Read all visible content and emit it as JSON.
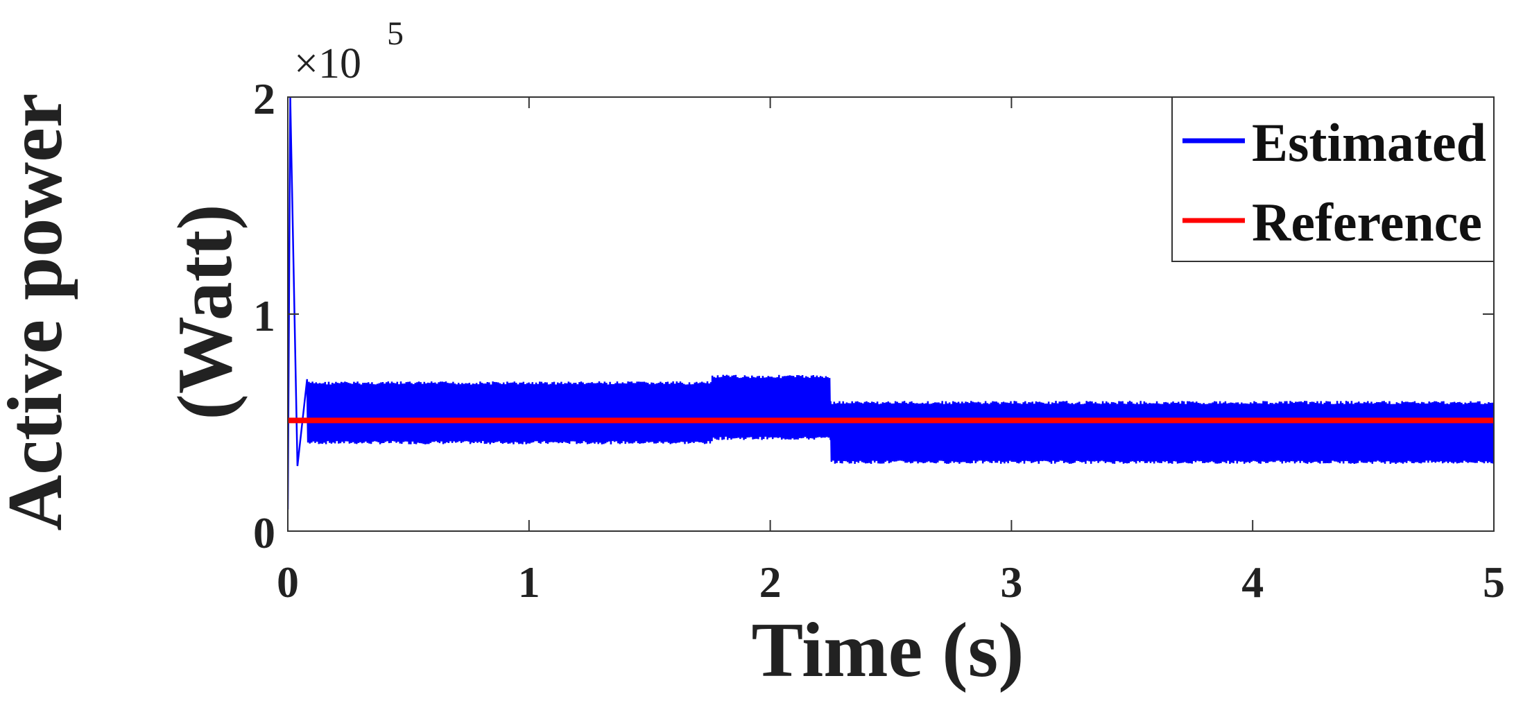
{
  "chart_data": {
    "type": "line",
    "title": "",
    "xlabel": "Time (s)",
    "ylabel_line1": "Active power",
    "ylabel_line2": "(Watt)",
    "y_exponent_label": "×10",
    "y_exponent_power": "5",
    "xlim": [
      0,
      5
    ],
    "ylim": [
      0,
      2
    ],
    "x_ticks": [
      0,
      1,
      2,
      3,
      4,
      5
    ],
    "x_tick_labels": [
      "0",
      "1",
      "2",
      "3",
      "4",
      "5"
    ],
    "y_ticks": [
      0,
      1,
      2
    ],
    "y_tick_labels": [
      "0",
      "1",
      "2"
    ],
    "grid": false,
    "legend_position": "top-right",
    "series": [
      {
        "name": "Estimated",
        "color": "#0000ff",
        "style": "oscillating band",
        "points": [
          [
            0.0,
            0.1
          ],
          [
            0.01,
            2.0
          ],
          [
            0.04,
            0.3
          ],
          [
            0.08,
            0.7
          ]
        ],
        "bands": [
          {
            "x": [
              0.08,
              1.76
            ],
            "low": 0.4,
            "high": 0.69
          },
          {
            "x": [
              1.76,
              2.25
            ],
            "low": 0.42,
            "high": 0.72
          },
          {
            "x": [
              2.25,
              5.0
            ],
            "low": 0.31,
            "high": 0.6
          }
        ]
      },
      {
        "name": "Reference",
        "color": "#ff0000",
        "style": "constant",
        "points": [
          [
            0,
            0.51
          ],
          [
            5,
            0.51
          ]
        ]
      }
    ]
  }
}
